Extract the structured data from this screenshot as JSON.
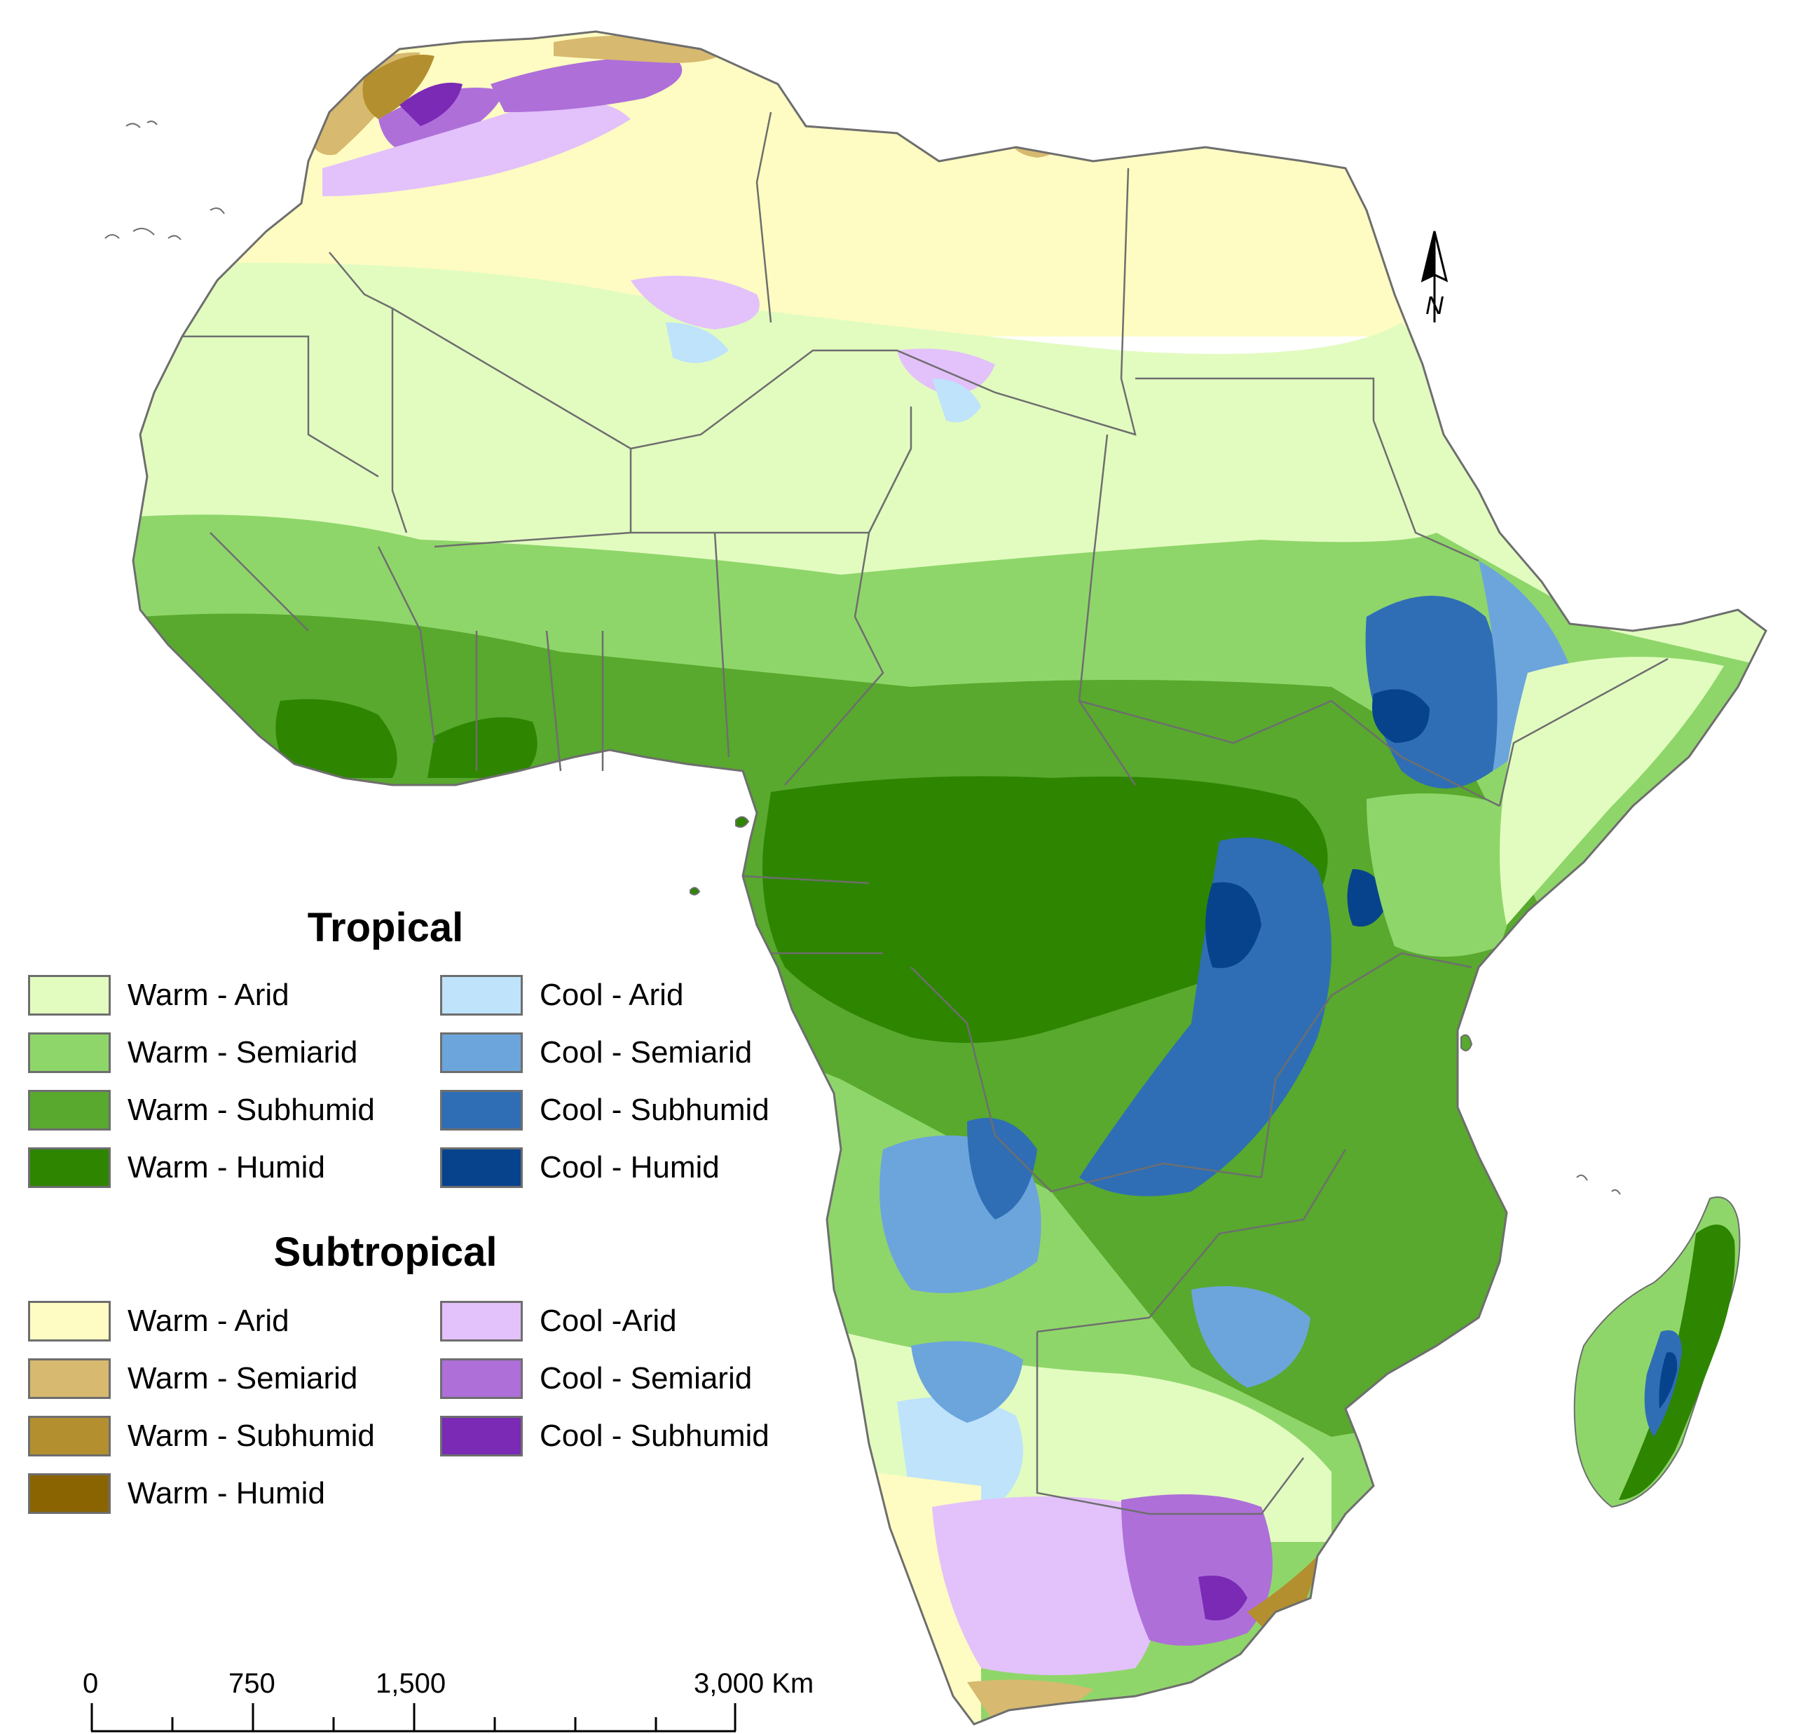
{
  "legend": {
    "tropical": {
      "title": "Tropical",
      "items": [
        {
          "label": "Warm - Arid",
          "color": "#e2fcc0"
        },
        {
          "label": "Warm - Semiarid",
          "color": "#8fd66a"
        },
        {
          "label": "Warm - Subhumid",
          "color": "#58a92e"
        },
        {
          "label": "Warm - Humid",
          "color": "#2e8500"
        },
        {
          "label": "Cool - Arid",
          "color": "#bee3fb"
        },
        {
          "label": "Cool - Semiarid",
          "color": "#6ca5dc"
        },
        {
          "label": "Cool - Subhumid",
          "color": "#2f6eb5"
        },
        {
          "label": "Cool - Humid",
          "color": "#07438d"
        }
      ]
    },
    "subtropical": {
      "title": "Subtropical",
      "items": [
        {
          "label": "Warm - Arid",
          "color": "#fefcc2"
        },
        {
          "label": "Warm - Semiarid",
          "color": "#d7b96f"
        },
        {
          "label": "Warm - Subhumid",
          "color": "#b48f2f"
        },
        {
          "label": "Warm - Humid",
          "color": "#8a6400"
        },
        {
          "label": "Cool -Arid",
          "color": "#e3c1fb"
        },
        {
          "label": "Cool - Semiarid",
          "color": "#ae6fd9"
        },
        {
          "label": "Cool - Subhumid",
          "color": "#7a2ab5"
        }
      ]
    }
  },
  "scale_bar": {
    "labels": [
      "0",
      "750",
      "1,500",
      "3,000 Km"
    ]
  },
  "north_arrow": {
    "label": "N",
    "icon": "north-arrow-icon"
  },
  "colors": {
    "border": "#6e6e6e",
    "background": "#ffffff"
  }
}
